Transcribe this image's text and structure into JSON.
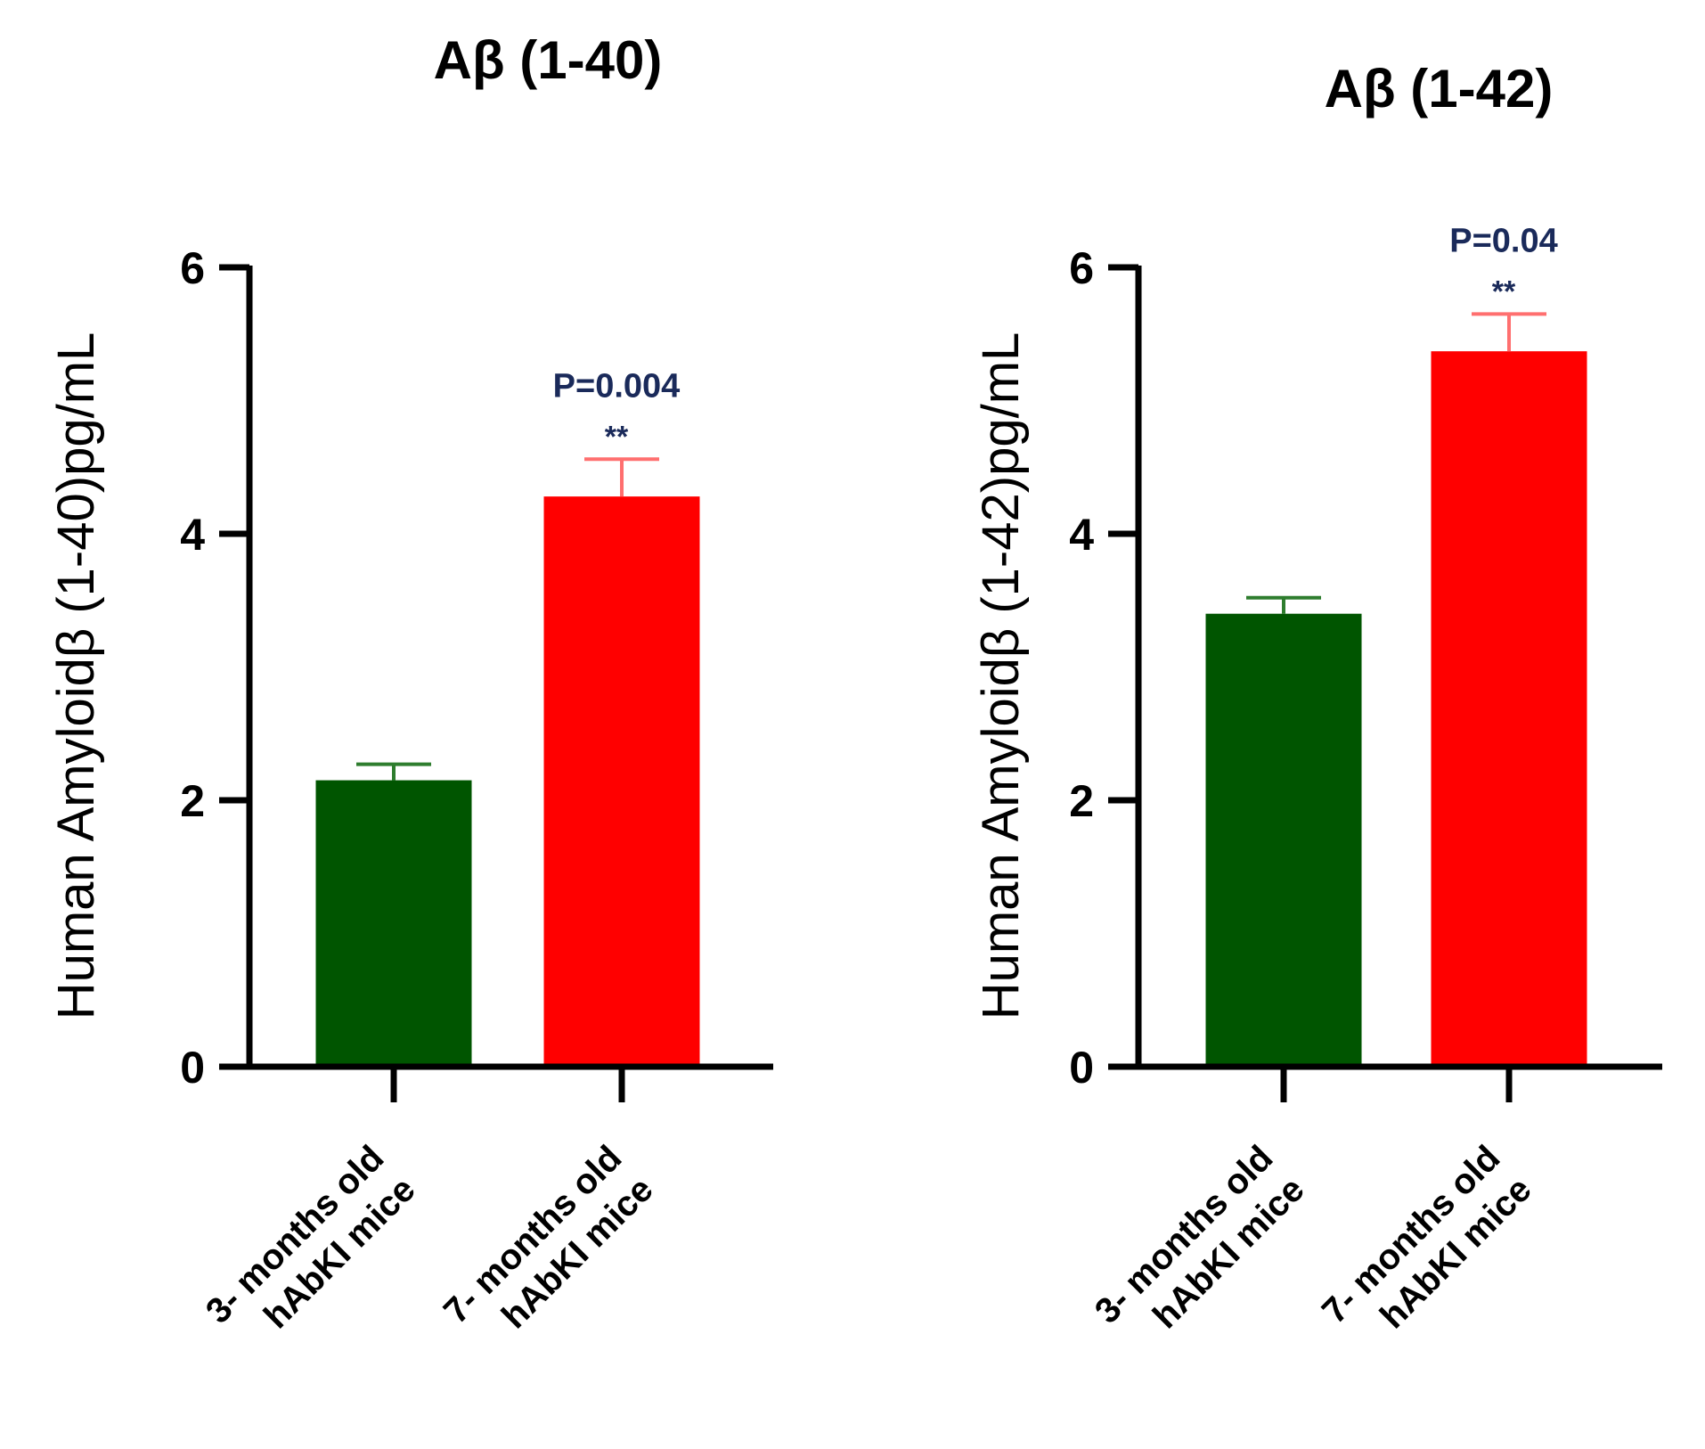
{
  "chart_data": [
    {
      "type": "bar",
      "title": "Aβ (1-40)",
      "ylabel": "Human Amyloidβ (1-40)pg/mL",
      "xlabel": "",
      "ylim": [
        0,
        6
      ],
      "yticks": [
        0,
        2,
        4,
        6
      ],
      "categories": [
        {
          "line1": "3- months old",
          "line2": "hAbKI mice"
        },
        {
          "line1": "7- months old",
          "line2": "hAbKI mice"
        }
      ],
      "values": [
        2.15,
        4.28
      ],
      "errors": [
        0.12,
        0.28
      ],
      "colors": [
        "#005500",
        "#ff0000"
      ],
      "error_colors": [
        "#2e7d2e",
        "#ff6f6f"
      ],
      "annotation": {
        "index": 1,
        "p_text": "P=0.004",
        "stars": "**"
      }
    },
    {
      "type": "bar",
      "title": "Aβ (1-42)",
      "ylabel": "Human Amyloidβ (1-42)pg/mL",
      "xlabel": "",
      "ylim": [
        0,
        6
      ],
      "yticks": [
        0,
        2,
        4,
        6
      ],
      "categories": [
        {
          "line1": "3- months old",
          "line2": "hAbKI mice"
        },
        {
          "line1": "7- months old",
          "line2": "hAbKI mice"
        }
      ],
      "values": [
        3.4,
        5.37
      ],
      "errors": [
        0.12,
        0.28
      ],
      "colors": [
        "#005500",
        "#ff0000"
      ],
      "error_colors": [
        "#2e7d2e",
        "#ff6f6f"
      ],
      "annotation": {
        "index": 1,
        "p_text": "P=0.04",
        "stars": "**"
      }
    }
  ]
}
